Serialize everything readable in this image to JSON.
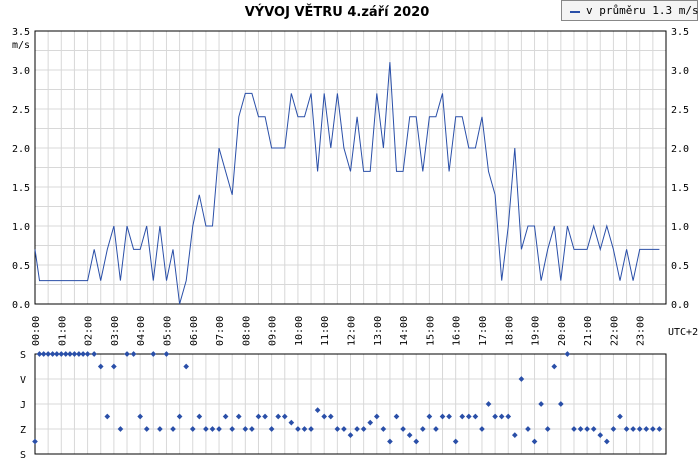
{
  "chart_data": [
    {
      "type": "line",
      "title": "VÝVOJ VĚTRU  4.září 2020",
      "legend": {
        "label": "v průměru 1.3 m/s",
        "position": "top-right",
        "color": "#2a4fa8"
      },
      "ylabel": "m/s",
      "ylim": [
        0,
        3.5
      ],
      "y_ticks": [
        "0.0",
        "0.5",
        "1.0",
        "1.5",
        "2.0",
        "2.5",
        "3.0",
        "3.5"
      ],
      "x_ticks": [
        "00:00",
        "01:00",
        "02:00",
        "03:00",
        "04:00",
        "05:00",
        "06:00",
        "07:00",
        "08:00",
        "09:00",
        "10:00",
        "11:00",
        "12:00",
        "13:00",
        "14:00",
        "15:00",
        "16:00",
        "17:00",
        "18:00",
        "19:00",
        "20:00",
        "21:00",
        "22:00",
        "23:00"
      ],
      "x_unit": "UTC+2",
      "grid": true,
      "series": [
        {
          "color": "#2a4fa8",
          "points": [
            [
              0.0,
              0.7
            ],
            [
              0.17,
              0.3
            ],
            [
              0.33,
              0.3
            ],
            [
              0.5,
              0.3
            ],
            [
              0.67,
              0.3
            ],
            [
              0.83,
              0.3
            ],
            [
              1.0,
              0.3
            ],
            [
              1.17,
              0.3
            ],
            [
              1.33,
              0.3
            ],
            [
              1.5,
              0.3
            ],
            [
              1.67,
              0.3
            ],
            [
              1.83,
              0.3
            ],
            [
              2.0,
              0.3
            ],
            [
              2.25,
              0.7
            ],
            [
              2.5,
              0.3
            ],
            [
              2.75,
              0.7
            ],
            [
              3.0,
              1.0
            ],
            [
              3.25,
              0.3
            ],
            [
              3.5,
              1.0
            ],
            [
              3.75,
              0.7
            ],
            [
              4.0,
              0.7
            ],
            [
              4.25,
              1.0
            ],
            [
              4.5,
              0.3
            ],
            [
              4.75,
              1.0
            ],
            [
              5.0,
              0.3
            ],
            [
              5.25,
              0.7
            ],
            [
              5.5,
              0.0
            ],
            [
              5.75,
              0.3
            ],
            [
              6.0,
              1.0
            ],
            [
              6.25,
              1.4
            ],
            [
              6.5,
              1.0
            ],
            [
              6.75,
              1.0
            ],
            [
              7.0,
              2.0
            ],
            [
              7.25,
              1.7
            ],
            [
              7.5,
              1.4
            ],
            [
              7.75,
              2.4
            ],
            [
              8.0,
              2.7
            ],
            [
              8.25,
              2.7
            ],
            [
              8.5,
              2.4
            ],
            [
              8.75,
              2.4
            ],
            [
              9.0,
              2.0
            ],
            [
              9.25,
              2.0
            ],
            [
              9.5,
              2.0
            ],
            [
              9.75,
              2.7
            ],
            [
              10.0,
              2.4
            ],
            [
              10.25,
              2.4
            ],
            [
              10.5,
              2.7
            ],
            [
              10.75,
              1.7
            ],
            [
              11.0,
              2.7
            ],
            [
              11.25,
              2.0
            ],
            [
              11.5,
              2.7
            ],
            [
              11.75,
              2.0
            ],
            [
              12.0,
              1.7
            ],
            [
              12.25,
              2.4
            ],
            [
              12.5,
              1.7
            ],
            [
              12.75,
              1.7
            ],
            [
              13.0,
              2.7
            ],
            [
              13.25,
              2.0
            ],
            [
              13.5,
              3.1
            ],
            [
              13.75,
              1.7
            ],
            [
              14.0,
              1.7
            ],
            [
              14.25,
              2.4
            ],
            [
              14.5,
              2.4
            ],
            [
              14.75,
              1.7
            ],
            [
              15.0,
              2.4
            ],
            [
              15.25,
              2.4
            ],
            [
              15.5,
              2.7
            ],
            [
              15.75,
              1.7
            ],
            [
              16.0,
              2.4
            ],
            [
              16.25,
              2.4
            ],
            [
              16.5,
              2.0
            ],
            [
              16.75,
              2.0
            ],
            [
              17.0,
              2.4
            ],
            [
              17.25,
              1.7
            ],
            [
              17.5,
              1.4
            ],
            [
              17.75,
              0.3
            ],
            [
              18.0,
              1.0
            ],
            [
              18.25,
              2.0
            ],
            [
              18.5,
              0.7
            ],
            [
              18.75,
              1.0
            ],
            [
              19.0,
              1.0
            ],
            [
              19.25,
              0.3
            ],
            [
              19.5,
              0.7
            ],
            [
              19.75,
              1.0
            ],
            [
              20.0,
              0.3
            ],
            [
              20.25,
              1.0
            ],
            [
              20.5,
              0.7
            ],
            [
              20.75,
              0.7
            ],
            [
              21.0,
              0.7
            ],
            [
              21.25,
              1.0
            ],
            [
              21.5,
              0.7
            ],
            [
              21.75,
              1.0
            ],
            [
              22.0,
              0.7
            ],
            [
              22.25,
              0.3
            ],
            [
              22.5,
              0.7
            ],
            [
              22.75,
              0.3
            ],
            [
              23.0,
              0.7
            ],
            [
              23.25,
              0.7
            ],
            [
              23.5,
              0.7
            ],
            [
              23.75,
              0.7
            ]
          ]
        }
      ]
    },
    {
      "type": "scatter",
      "y_ticks": [
        "S",
        "V",
        "J",
        "Z",
        "S"
      ],
      "y_values": [
        0,
        90,
        180,
        270,
        360
      ],
      "ylim": [
        0,
        360
      ],
      "grid": true,
      "series": [
        {
          "color": "#2a4fa8",
          "points": [
            [
              0.0,
              315
            ],
            [
              0.17,
              0
            ],
            [
              0.33,
              0
            ],
            [
              0.5,
              0
            ],
            [
              0.67,
              0
            ],
            [
              0.83,
              0
            ],
            [
              1.0,
              0
            ],
            [
              1.17,
              0
            ],
            [
              1.33,
              0
            ],
            [
              1.5,
              0
            ],
            [
              1.67,
              0
            ],
            [
              1.83,
              0
            ],
            [
              2.0,
              0
            ],
            [
              2.25,
              0
            ],
            [
              2.5,
              45
            ],
            [
              2.75,
              225
            ],
            [
              3.0,
              45
            ],
            [
              3.25,
              270
            ],
            [
              3.5,
              0
            ],
            [
              3.75,
              0
            ],
            [
              4.0,
              225
            ],
            [
              4.25,
              270
            ],
            [
              4.5,
              0
            ],
            [
              4.75,
              270
            ],
            [
              5.0,
              0
            ],
            [
              5.25,
              270
            ],
            [
              5.5,
              225
            ],
            [
              5.75,
              45
            ],
            [
              6.0,
              270
            ],
            [
              6.25,
              225
            ],
            [
              6.5,
              270
            ],
            [
              6.75,
              270
            ],
            [
              7.0,
              270
            ],
            [
              7.25,
              225
            ],
            [
              7.5,
              270
            ],
            [
              7.75,
              225
            ],
            [
              8.0,
              270
            ],
            [
              8.25,
              270
            ],
            [
              8.5,
              225
            ],
            [
              8.75,
              225
            ],
            [
              9.0,
              270
            ],
            [
              9.25,
              225
            ],
            [
              9.5,
              225
            ],
            [
              9.75,
              247
            ],
            [
              10.0,
              270
            ],
            [
              10.25,
              270
            ],
            [
              10.5,
              270
            ],
            [
              10.75,
              202
            ],
            [
              11.0,
              225
            ],
            [
              11.25,
              225
            ],
            [
              11.5,
              270
            ],
            [
              11.75,
              270
            ],
            [
              12.0,
              292
            ],
            [
              12.25,
              270
            ],
            [
              12.5,
              270
            ],
            [
              12.75,
              247
            ],
            [
              13.0,
              225
            ],
            [
              13.25,
              270
            ],
            [
              13.5,
              315
            ],
            [
              13.75,
              225
            ],
            [
              14.0,
              270
            ],
            [
              14.25,
              292
            ],
            [
              14.5,
              315
            ],
            [
              14.75,
              270
            ],
            [
              15.0,
              225
            ],
            [
              15.25,
              270
            ],
            [
              15.5,
              225
            ],
            [
              15.75,
              225
            ],
            [
              16.0,
              315
            ],
            [
              16.25,
              225
            ],
            [
              16.5,
              225
            ],
            [
              16.75,
              225
            ],
            [
              17.0,
              270
            ],
            [
              17.25,
              180
            ],
            [
              17.5,
              225
            ],
            [
              17.75,
              225
            ],
            [
              18.0,
              225
            ],
            [
              18.25,
              292
            ],
            [
              18.5,
              90
            ],
            [
              18.75,
              270
            ],
            [
              19.0,
              315
            ],
            [
              19.25,
              180
            ],
            [
              19.5,
              270
            ],
            [
              19.75,
              45
            ],
            [
              20.0,
              180
            ],
            [
              20.25,
              0
            ],
            [
              20.5,
              270
            ],
            [
              20.75,
              270
            ],
            [
              21.0,
              270
            ],
            [
              21.25,
              270
            ],
            [
              21.5,
              292
            ],
            [
              21.75,
              315
            ],
            [
              22.0,
              270
            ],
            [
              22.25,
              225
            ],
            [
              22.5,
              270
            ],
            [
              22.75,
              270
            ],
            [
              23.0,
              270
            ],
            [
              23.25,
              270
            ],
            [
              23.5,
              270
            ],
            [
              23.75,
              270
            ]
          ]
        }
      ]
    }
  ]
}
